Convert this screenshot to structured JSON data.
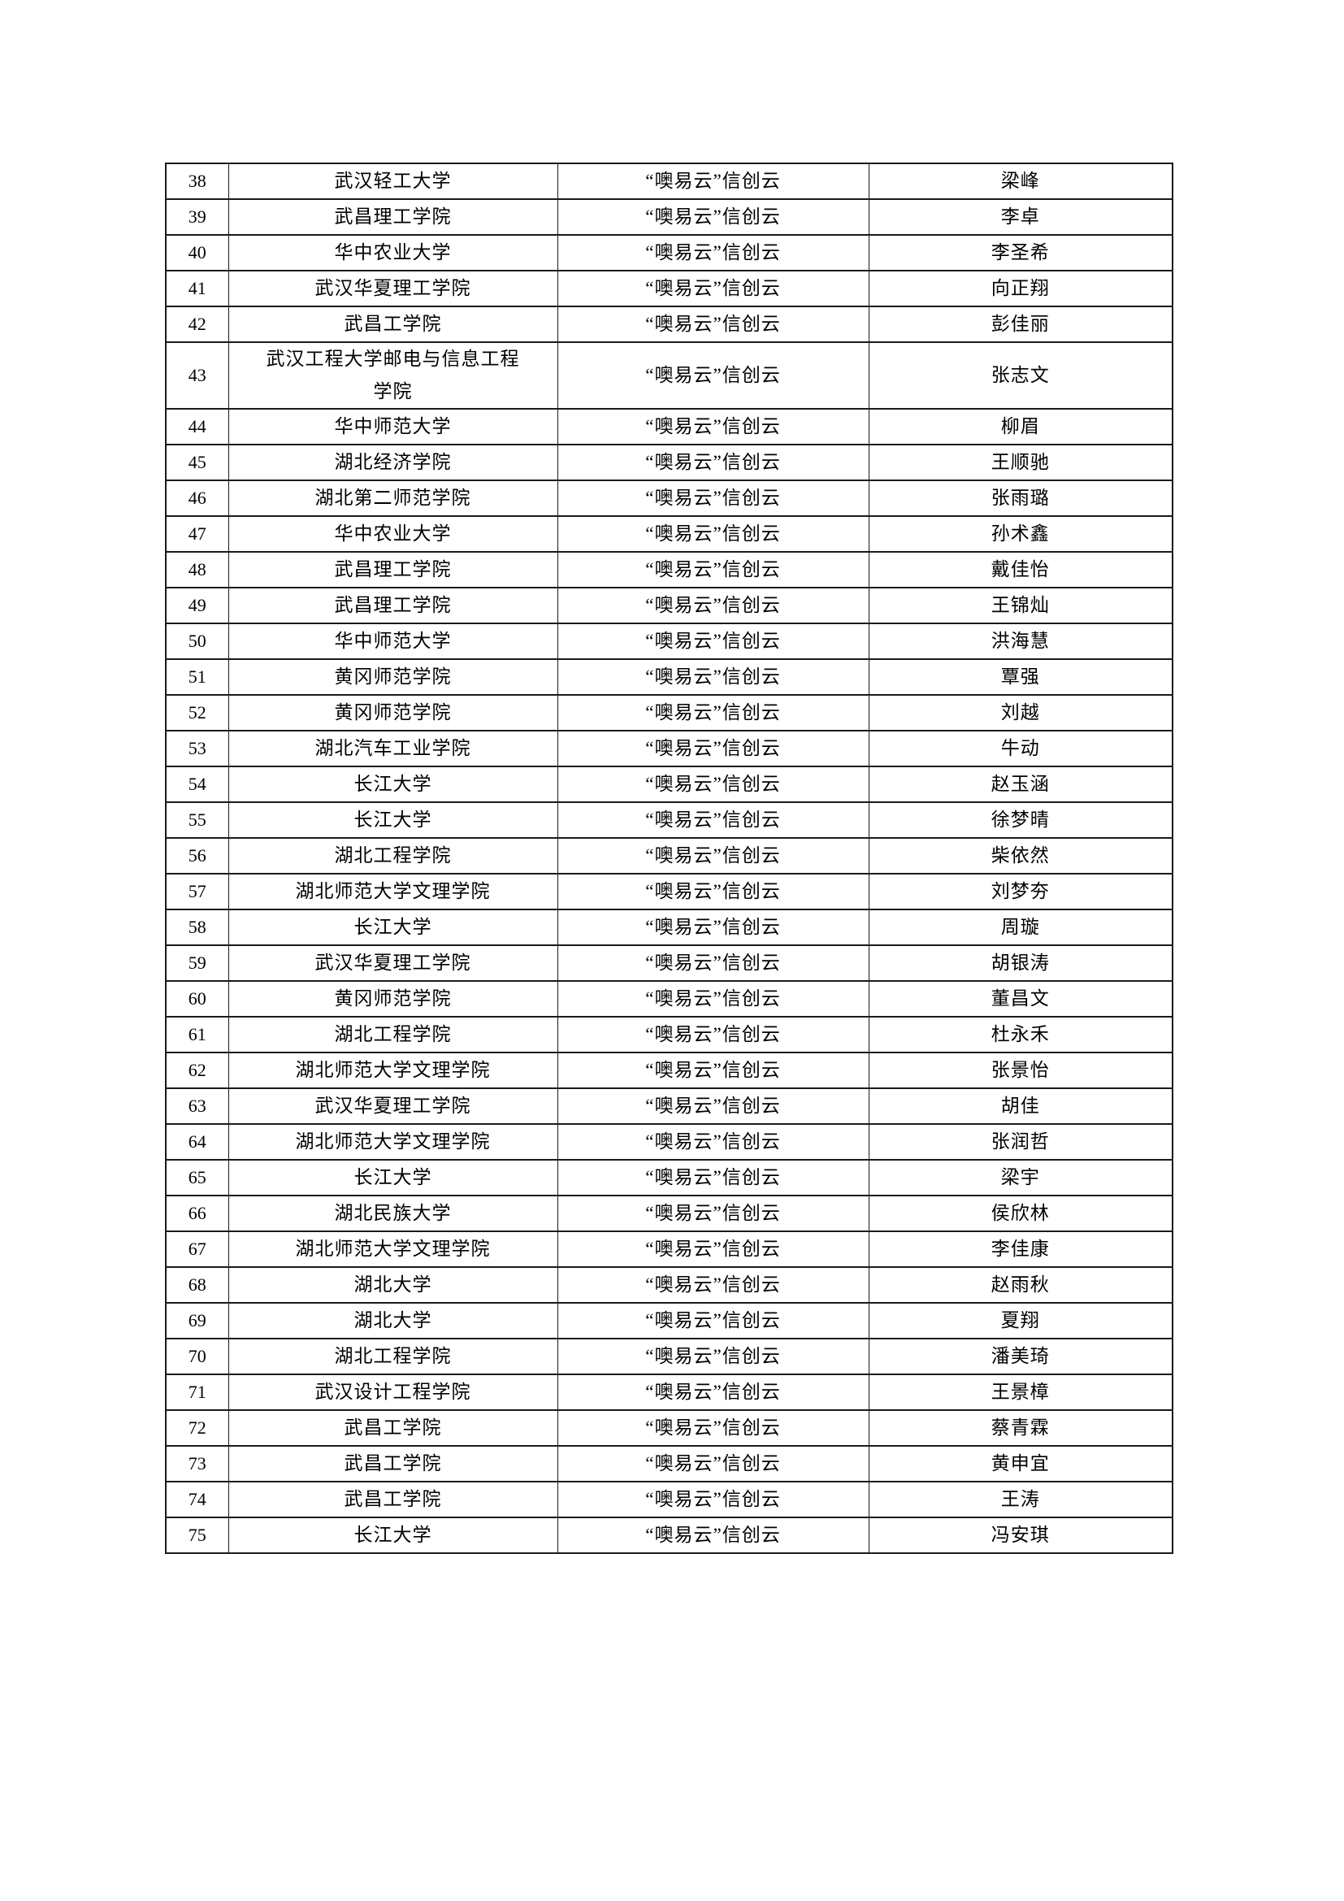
{
  "page": {
    "background": "#ffffff",
    "table_border_color": "#1a1a1a",
    "text_color": "#000000"
  },
  "table": {
    "columns": [
      "index",
      "university",
      "cloud",
      "name"
    ],
    "rows": [
      {
        "index": "38",
        "university": "武汉轻工大学",
        "cloud": "“噢易云”信创云",
        "name": "梁峰"
      },
      {
        "index": "39",
        "university": "武昌理工学院",
        "cloud": "“噢易云”信创云",
        "name": "李卓"
      },
      {
        "index": "40",
        "university": "华中农业大学",
        "cloud": "“噢易云”信创云",
        "name": "李圣希"
      },
      {
        "index": "41",
        "university": "武汉华夏理工学院",
        "cloud": "“噢易云”信创云",
        "name": "向正翔"
      },
      {
        "index": "42",
        "university": "武昌工学院",
        "cloud": "“噢易云”信创云",
        "name": "彭佳丽"
      },
      {
        "index": "43",
        "university": "武汉工程大学邮电与信息工程\n学院",
        "cloud": "“噢易云”信创云",
        "name": "张志文"
      },
      {
        "index": "44",
        "university": "华中师范大学",
        "cloud": "“噢易云”信创云",
        "name": "柳眉"
      },
      {
        "index": "45",
        "university": "湖北经济学院",
        "cloud": "“噢易云”信创云",
        "name": "王顺驰"
      },
      {
        "index": "46",
        "university": "湖北第二师范学院",
        "cloud": "“噢易云”信创云",
        "name": "张雨璐"
      },
      {
        "index": "47",
        "university": "华中农业大学",
        "cloud": "“噢易云”信创云",
        "name": "孙术鑫"
      },
      {
        "index": "48",
        "university": "武昌理工学院",
        "cloud": "“噢易云”信创云",
        "name": "戴佳怡"
      },
      {
        "index": "49",
        "university": "武昌理工学院",
        "cloud": "“噢易云”信创云",
        "name": "王锦灿"
      },
      {
        "index": "50",
        "university": "华中师范大学",
        "cloud": "“噢易云”信创云",
        "name": "洪海慧"
      },
      {
        "index": "51",
        "university": "黄冈师范学院",
        "cloud": "“噢易云”信创云",
        "name": "覃强"
      },
      {
        "index": "52",
        "university": "黄冈师范学院",
        "cloud": "“噢易云”信创云",
        "name": "刘越"
      },
      {
        "index": "53",
        "university": "湖北汽车工业学院",
        "cloud": "“噢易云”信创云",
        "name": "牛动"
      },
      {
        "index": "54",
        "university": "长江大学",
        "cloud": "“噢易云”信创云",
        "name": "赵玉涵"
      },
      {
        "index": "55",
        "university": "长江大学",
        "cloud": "“噢易云”信创云",
        "name": "徐梦晴"
      },
      {
        "index": "56",
        "university": "湖北工程学院",
        "cloud": "“噢易云”信创云",
        "name": "柴依然"
      },
      {
        "index": "57",
        "university": "湖北师范大学文理学院",
        "cloud": "“噢易云”信创云",
        "name": "刘梦夯"
      },
      {
        "index": "58",
        "university": "长江大学",
        "cloud": "“噢易云”信创云",
        "name": "周璇"
      },
      {
        "index": "59",
        "university": "武汉华夏理工学院",
        "cloud": "“噢易云”信创云",
        "name": "胡银涛"
      },
      {
        "index": "60",
        "university": "黄冈师范学院",
        "cloud": "“噢易云”信创云",
        "name": "董昌文"
      },
      {
        "index": "61",
        "university": "湖北工程学院",
        "cloud": "“噢易云”信创云",
        "name": "杜永禾"
      },
      {
        "index": "62",
        "university": "湖北师范大学文理学院",
        "cloud": "“噢易云”信创云",
        "name": "张景怡"
      },
      {
        "index": "63",
        "university": "武汉华夏理工学院",
        "cloud": "“噢易云”信创云",
        "name": "胡佳"
      },
      {
        "index": "64",
        "university": "湖北师范大学文理学院",
        "cloud": "“噢易云”信创云",
        "name": "张润哲"
      },
      {
        "index": "65",
        "university": "长江大学",
        "cloud": "“噢易云”信创云",
        "name": "梁宇"
      },
      {
        "index": "66",
        "university": "湖北民族大学",
        "cloud": "“噢易云”信创云",
        "name": "侯欣林"
      },
      {
        "index": "67",
        "university": "湖北师范大学文理学院",
        "cloud": "“噢易云”信创云",
        "name": "李佳康"
      },
      {
        "index": "68",
        "university": "湖北大学",
        "cloud": "“噢易云”信创云",
        "name": "赵雨秋"
      },
      {
        "index": "69",
        "university": "湖北大学",
        "cloud": "“噢易云”信创云",
        "name": "夏翔"
      },
      {
        "index": "70",
        "university": "湖北工程学院",
        "cloud": "“噢易云”信创云",
        "name": "潘美琦"
      },
      {
        "index": "71",
        "university": "武汉设计工程学院",
        "cloud": "“噢易云”信创云",
        "name": "王景樟"
      },
      {
        "index": "72",
        "university": "武昌工学院",
        "cloud": "“噢易云”信创云",
        "name": "蔡青霖"
      },
      {
        "index": "73",
        "university": "武昌工学院",
        "cloud": "“噢易云”信创云",
        "name": "黄申宜"
      },
      {
        "index": "74",
        "university": "武昌工学院",
        "cloud": "“噢易云”信创云",
        "name": "王涛"
      },
      {
        "index": "75",
        "university": "长江大学",
        "cloud": "“噢易云”信创云",
        "name": "冯安琪"
      }
    ]
  }
}
